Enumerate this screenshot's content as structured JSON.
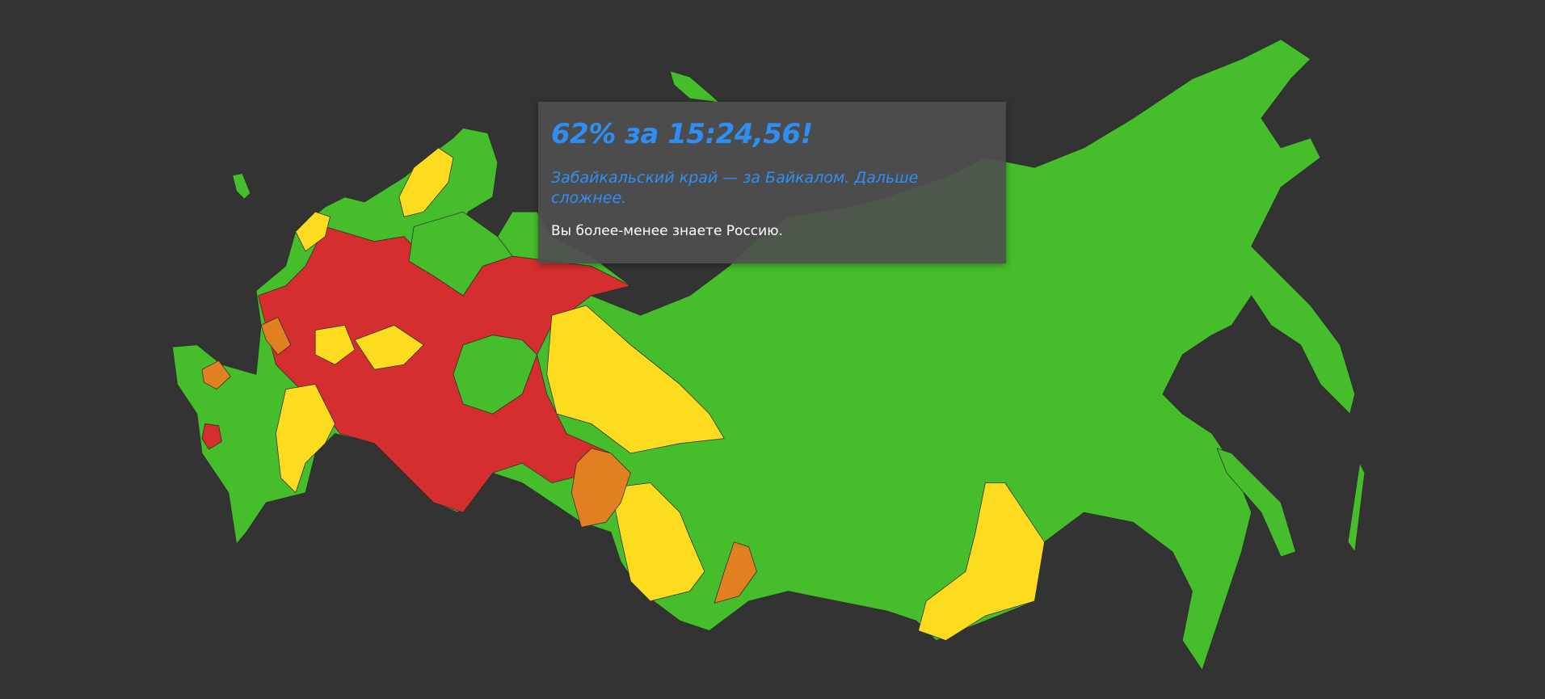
{
  "result": {
    "title": "62% за 15:24,56!",
    "subtitle": "Забайкальский край — за Байкалом. Дальше сложнее.",
    "message": "Вы более-менее знаете Россию."
  }
}
